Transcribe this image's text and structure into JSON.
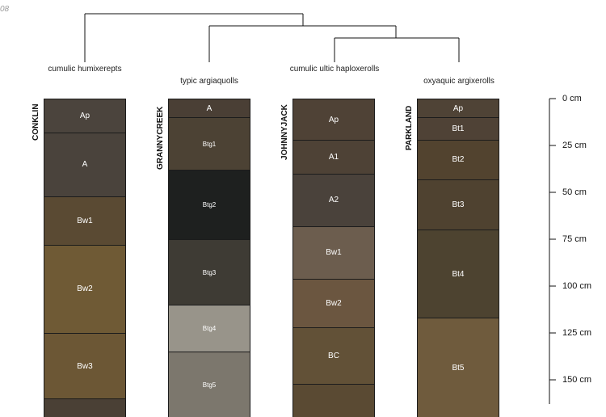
{
  "corner_text": "08",
  "taxa": [
    {
      "label": "cumulic humixerepts"
    },
    {
      "label": "typic argiaquolls"
    },
    {
      "label": "cumulic ultic haploxerolls"
    },
    {
      "label": "oxyaquic argixerolls"
    }
  ],
  "profiles": [
    {
      "name": "CONKLIN",
      "horizons": [
        {
          "name": "Ap",
          "top": 0,
          "bottom": 18,
          "color": "#4b443d"
        },
        {
          "name": "A",
          "top": 18,
          "bottom": 52,
          "color": "#4a433c"
        },
        {
          "name": "Bw1",
          "top": 52,
          "bottom": 78,
          "color": "#5a4a33"
        },
        {
          "name": "Bw2",
          "top": 78,
          "bottom": 125,
          "color": "#6f5a35"
        },
        {
          "name": "Bw3",
          "top": 125,
          "bottom": 160,
          "color": "#6c5735"
        },
        {
          "name": "",
          "top": 160,
          "bottom": 170,
          "color": "#4a4035"
        }
      ]
    },
    {
      "name": "GRANNYCREEK",
      "horizons": [
        {
          "name": "A",
          "top": 0,
          "bottom": 10,
          "color": "#4a3f35"
        },
        {
          "name": "Btg1",
          "top": 10,
          "bottom": 38,
          "color": "#4c4234"
        },
        {
          "name": "Btg2",
          "top": 38,
          "bottom": 75,
          "color": "#1e201f"
        },
        {
          "name": "Btg3",
          "top": 75,
          "bottom": 110,
          "color": "#3e3b34"
        },
        {
          "name": "Btg4",
          "top": 110,
          "bottom": 135,
          "color": "#98948a"
        },
        {
          "name": "Btg5",
          "top": 135,
          "bottom": 170,
          "color": "#7c776d"
        }
      ]
    },
    {
      "name": "JOHNNYJACK",
      "horizons": [
        {
          "name": "Ap",
          "top": 0,
          "bottom": 22,
          "color": "#4f4236"
        },
        {
          "name": "A1",
          "top": 22,
          "bottom": 40,
          "color": "#4e4236"
        },
        {
          "name": "A2",
          "top": 40,
          "bottom": 68,
          "color": "#4a423b"
        },
        {
          "name": "Bw1",
          "top": 68,
          "bottom": 96,
          "color": "#6c5d4e"
        },
        {
          "name": "Bw2",
          "top": 96,
          "bottom": 122,
          "color": "#6b5640"
        },
        {
          "name": "BC",
          "top": 122,
          "bottom": 152,
          "color": "#625137"
        },
        {
          "name": "",
          "top": 152,
          "bottom": 170,
          "color": "#5a4a33"
        }
      ]
    },
    {
      "name": "PARKLAND",
      "horizons": [
        {
          "name": "Ap",
          "top": 0,
          "bottom": 10,
          "color": "#4f4336"
        },
        {
          "name": "Bt1",
          "top": 10,
          "bottom": 22,
          "color": "#4f4236"
        },
        {
          "name": "Bt2",
          "top": 22,
          "bottom": 43,
          "color": "#52432f"
        },
        {
          "name": "Bt3",
          "top": 43,
          "bottom": 70,
          "color": "#4f4230"
        },
        {
          "name": "Bt4",
          "top": 70,
          "bottom": 117,
          "color": "#4d4330"
        },
        {
          "name": "Bt5",
          "top": 117,
          "bottom": 170,
          "color": "#6f5b3d"
        }
      ]
    }
  ],
  "depth_scale": {
    "ticks": [
      0,
      25,
      50,
      75,
      100,
      125,
      150
    ],
    "labels": [
      "0 cm",
      "25 cm",
      "50 cm",
      "75 cm",
      "100 cm",
      "125 cm",
      "150 cm"
    ]
  }
}
